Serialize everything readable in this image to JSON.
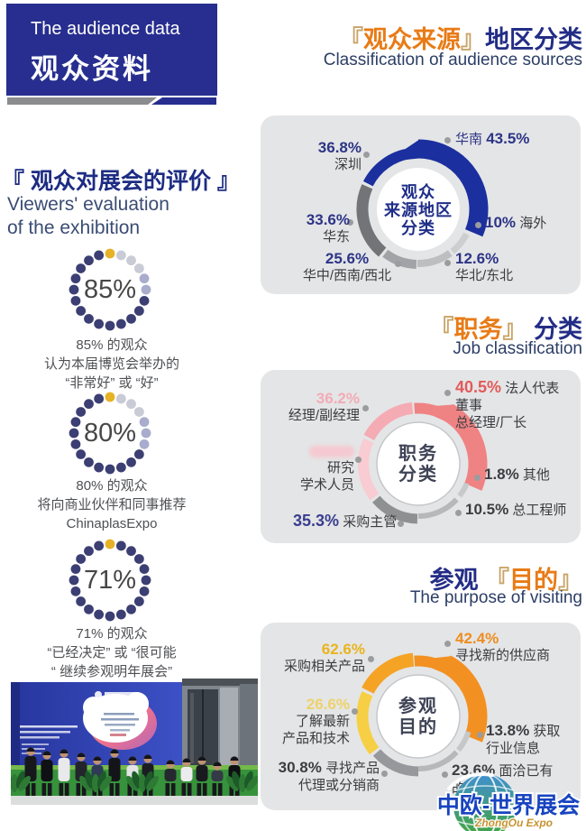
{
  "header": {
    "title_en": "The audience data",
    "title_zh": "观众资料"
  },
  "evaluation": {
    "title": "『 观众对展会的评价 』",
    "subtitle_line1": "Viewers' evaluation",
    "subtitle_line2": "of the exhibition",
    "ring": {
      "dots": 20,
      "dark": "#3c3f73",
      "light_a": "#c9cbd6",
      "light_b": "#a9accc",
      "gold": "#e6b226"
    },
    "stats": [
      {
        "percent": "85%",
        "light_dots": 5,
        "lines": [
          "85% 的观众",
          "认为本届博览会举办的",
          "“非常好” 或 “好”"
        ]
      },
      {
        "percent": "80%",
        "light_dots": 6,
        "lines": [
          "80% 的观众",
          "将向商业伙伴和同事推荐",
          "ChinaplasExpo"
        ]
      },
      {
        "percent": "71%",
        "light_dots": 0,
        "lines": [
          "71% 的观众",
          "“已经决定” 或 “很可能",
          "“ 继续参观明年展会”"
        ]
      }
    ]
  },
  "chart_data": [
    {
      "type": "donut",
      "title": {
        "pre": "",
        "bl": "『",
        "accent": "观众来源",
        "br": "』",
        "post": "地区分类",
        "en": "Classification of audience sources"
      },
      "center_lines": [
        "观众",
        "来源地区",
        "分类"
      ],
      "center_color": "#1f2e88",
      "center_border": false,
      "labels": [
        {
          "name": "华南",
          "percent": "43.5%",
          "percent_color": "#2c3486",
          "name_color": "#2c3486"
        },
        {
          "percent": "36.8%",
          "name": "深圳",
          "percent_color": "#2c3486"
        },
        {
          "percent": "33.6%",
          "name": "华东",
          "percent_color": "#2c3486"
        },
        {
          "percent": "25.6%",
          "name": "华中/西南/西北",
          "percent_color": "#2c3486"
        },
        {
          "percent": "12.6%",
          "name": "华北/东北",
          "percent_color": "#2c3486"
        },
        {
          "percent": "10%",
          "name": "海外",
          "percent_color": "#2c3486"
        }
      ],
      "segments": [
        {
          "label": "华南",
          "value": 43.5,
          "color": "#1b2f9e",
          "from": -8,
          "to": 113,
          "w": 21,
          "r": 67,
          "tail": {
            "from": -63,
            "to": -8,
            "w": 12,
            "r": 62.5
          }
        },
        {
          "label": "华东",
          "value": 33.6,
          "color": "#737478",
          "from": -140,
          "to": -66,
          "w": 13,
          "r": 62
        },
        {
          "label": "华中/西南/西北",
          "value": 25.6,
          "color": "#a2a3a6",
          "from": -178,
          "to": -143,
          "w": 10,
          "r": 61
        },
        {
          "label": "华北/东北",
          "value": 12.6,
          "color": "#bdbec0",
          "from": 144,
          "to": 181,
          "w": 8,
          "r": 60
        },
        {
          "label": "海外",
          "value": 10,
          "color": "#cdced0",
          "from": 117,
          "to": 141,
          "w": 7,
          "r": 60
        }
      ]
    },
    {
      "type": "donut",
      "title": {
        "pre": "",
        "bl": "『",
        "accent": "职务",
        "br": "』",
        "post": " 分类",
        "en": "Job classification"
      },
      "center_lines": [
        "职务",
        "分类"
      ],
      "center_color": "#3f4356",
      "center_border": true,
      "labels": [
        {
          "percent": "40.5%",
          "name": "法人代表",
          "name2": "董事",
          "name3": "总经理/厂长",
          "percent_color": "#e25a5a"
        },
        {
          "percent": "36.2%",
          "name": "经理/副经理",
          "percent_color": "#f3abb6"
        },
        {
          "percent": "",
          "name": "研究",
          "name2": "学术人员",
          "percent_color": "#f6ccd3"
        },
        {
          "percent": "35.3%",
          "name": "采购主管",
          "percent_color": "#3a3e8f"
        },
        {
          "percent": "1.8%",
          "name": "其他",
          "percent_color": "#3c3d42"
        },
        {
          "percent": "10.5%",
          "name": "总工程师",
          "percent_color": "#3c3d42"
        }
      ],
      "segments": [
        {
          "label": "法人代表/董事/总经理/厂长",
          "value": 40.5,
          "color": "#ef8383",
          "from": 22,
          "to": 113,
          "w": 21,
          "r": 66,
          "tail": {
            "from": -4,
            "to": 22,
            "w": 12,
            "r": 61.5
          }
        },
        {
          "label": "经理/副经理",
          "value": 36.2,
          "color": "#f4abb4",
          "from": -62,
          "to": -6,
          "w": 13,
          "r": 62
        },
        {
          "label": "研究/学术人员",
          "value": null,
          "color": "#f8ccd2",
          "from": -127,
          "to": -65,
          "w": 12,
          "r": 61
        },
        {
          "label": "采购主管",
          "value": 35.3,
          "color": "#8e9092",
          "from": -179,
          "to": -130,
          "w": 11,
          "r": 61
        },
        {
          "label": "总工程师",
          "value": 10.5,
          "color": "#b7b8ba",
          "from": 133,
          "to": 180,
          "w": 6,
          "r": 58
        },
        {
          "label": "其他",
          "value": 1.8,
          "color": "#c8c9cb",
          "from": 112,
          "to": 128,
          "w": 6,
          "r": 58
        }
      ]
    },
    {
      "type": "donut",
      "title": {
        "pre": "参观 ",
        "bl": "『",
        "accent": "目的",
        "br": "』",
        "post": "",
        "en": "The purpose of visiting"
      },
      "center_lines": [
        "参观",
        "目的"
      ],
      "center_color": "#3f4356",
      "center_border": true,
      "labels": [
        {
          "percent": "42.4%",
          "name": "寻找新的供应商",
          "percent_color": "#ef8c1e"
        },
        {
          "percent": "62.6%",
          "name": "采购相关产品",
          "percent_color": "#e9b41c"
        },
        {
          "percent": "26.6%",
          "name": "了解最新",
          "name2": "产品和技术",
          "percent_color": "#eed26a"
        },
        {
          "percent": "30.8%",
          "name": "寻找产品",
          "name2": "代理或分销商",
          "percent_color": "#3c3d42"
        },
        {
          "percent": "13.8%",
          "name": "获取",
          "name2": "行业信息",
          "percent_color": "#3c3d42"
        },
        {
          "percent": "23.6%",
          "name": "面洽已有",
          "name2": "的供应商",
          "percent_color": "#3c3d42"
        }
      ],
      "segments": [
        {
          "label": "寻找新的供应商",
          "value": 42.4,
          "color": "#f29022",
          "from": 20,
          "to": 112,
          "w": 21,
          "r": 66,
          "tail": {
            "from": -4,
            "to": 20,
            "w": 12,
            "r": 61.5
          }
        },
        {
          "label": "采购相关产品",
          "value": 62.6,
          "color": "#f5a325",
          "from": -63,
          "to": -5,
          "w": 15,
          "r": 63
        },
        {
          "label": "了解最新产品和技术",
          "value": 26.6,
          "color": "#f7cf45",
          "from": -128,
          "to": -66,
          "w": 13,
          "r": 62
        },
        {
          "label": "寻找产品代理或分销商",
          "value": 30.8,
          "color": "#97989b",
          "from": -180,
          "to": -131,
          "w": 11,
          "r": 61
        },
        {
          "label": "面洽已有的供应商",
          "value": 23.6,
          "color": "#b7b8ba",
          "from": 133,
          "to": 180,
          "w": 6,
          "r": 58
        },
        {
          "label": "获取行业信息",
          "value": 13.8,
          "color": "#c6c7c9",
          "from": 107,
          "to": 130,
          "w": 6,
          "r": 58
        }
      ]
    }
  ],
  "logo": {
    "zh": "中欧-世界展会",
    "en": "ZhongOu Expo"
  }
}
